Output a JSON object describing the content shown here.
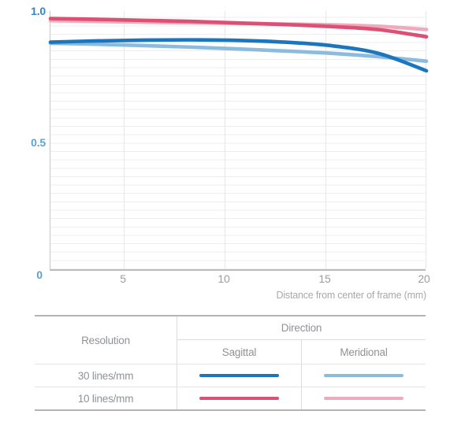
{
  "chart": {
    "y_tick_labels": [
      "1.0",
      "0.5"
    ],
    "origin_label": "0",
    "x_tick_labels": [
      "5",
      "10",
      "15",
      "20"
    ],
    "x_axis_title": "Distance from center of frame (mm)",
    "y_label_color": "#3385c6",
    "y_label_color_light": "#5ba2d6",
    "tick_label_color": "#9c9c9c"
  },
  "chart_data": {
    "type": "line",
    "title": "MTF chart",
    "xlabel": "Distance from center of frame (mm)",
    "ylabel": "",
    "xlim": [
      0,
      20
    ],
    "ylim": [
      0,
      1.0
    ],
    "x_ticks": [
      0,
      5,
      10,
      15,
      20
    ],
    "y_ticks": [
      0,
      0.5,
      1.0
    ],
    "grid": true,
    "legend_position": "table-below",
    "x": [
      0,
      2.5,
      5,
      7.5,
      10,
      12.5,
      15,
      17.5,
      20
    ],
    "series": [
      {
        "id": "10M",
        "name": "10 lines/mm Meridional",
        "color": "#f0aabd",
        "values": [
          0.963,
          0.96,
          0.957,
          0.955,
          0.952,
          0.95,
          0.947,
          0.941,
          0.929
        ]
      },
      {
        "id": "10S",
        "name": "10 lines/mm Sagittal",
        "color": "#dc5073",
        "values": [
          0.971,
          0.968,
          0.964,
          0.96,
          0.954,
          0.948,
          0.94,
          0.928,
          0.901
        ]
      },
      {
        "id": "30M",
        "name": "30 lines/mm Meridional",
        "color": "#8cbbe0",
        "values": [
          0.876,
          0.872,
          0.867,
          0.861,
          0.854,
          0.846,
          0.837,
          0.824,
          0.807
        ]
      },
      {
        "id": "30S",
        "name": "30 lines/mm Sagittal",
        "color": "#1b76bd",
        "values": [
          0.88,
          0.885,
          0.888,
          0.889,
          0.887,
          0.88,
          0.866,
          0.836,
          0.77
        ]
      }
    ]
  },
  "table": {
    "resolution_header": "Resolution",
    "direction_header": "Direction",
    "columns": [
      "Sagittal",
      "Meridional"
    ],
    "rows": [
      {
        "resolution": "30 lines/mm",
        "sagittal_series": "30S",
        "meridional_series": "30M"
      },
      {
        "resolution": "10 lines/mm",
        "sagittal_series": "10S",
        "meridional_series": "10M"
      }
    ]
  }
}
